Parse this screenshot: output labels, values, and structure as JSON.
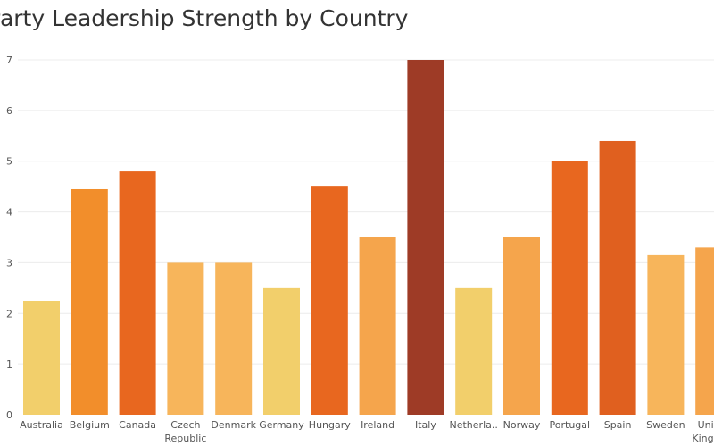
{
  "chart_data": {
    "type": "bar",
    "title": "Party Leadership Strength by Country",
    "xlabel": "",
    "ylabel": "",
    "ylim": [
      0,
      7
    ],
    "yticks": [
      0,
      1,
      2,
      3,
      4,
      5,
      6,
      7
    ],
    "grid": true,
    "legend": "none",
    "categories": [
      [
        "Australia"
      ],
      [
        "Belgium"
      ],
      [
        "Canada"
      ],
      [
        "Czech",
        "Republic"
      ],
      [
        "Denmark"
      ],
      [
        "Germany"
      ],
      [
        "Hungary"
      ],
      [
        "Ireland"
      ],
      [
        "Italy"
      ],
      [
        "Netherla.."
      ],
      [
        "Norway"
      ],
      [
        "Portugal"
      ],
      [
        "Spain"
      ],
      [
        "Sweden"
      ],
      [
        "United",
        "Kingdom"
      ]
    ],
    "values": [
      2.25,
      4.45,
      4.8,
      3.0,
      3.0,
      2.5,
      4.5,
      3.5,
      7.0,
      2.5,
      3.5,
      5.0,
      5.4,
      3.15,
      3.3
    ],
    "colors": [
      "#f2cf6b",
      "#f28e2b",
      "#e8671f",
      "#f7b55b",
      "#f7b55b",
      "#f2cf6b",
      "#e8671f",
      "#f5a54c",
      "#9e3b26",
      "#f2cf6b",
      "#f5a54c",
      "#e8671f",
      "#e0601f",
      "#f7b55b",
      "#f5a54c"
    ]
  }
}
